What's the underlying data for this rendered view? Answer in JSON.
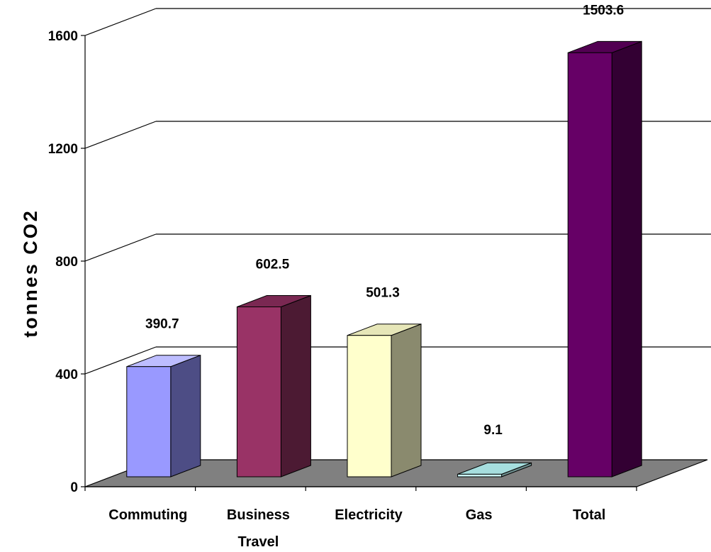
{
  "chart_data": {
    "type": "bar",
    "three_d": true,
    "categories": [
      [
        "Commuting"
      ],
      [
        "Business",
        "Travel"
      ],
      [
        "Electricity"
      ],
      [
        "Gas"
      ],
      [
        "Total"
      ]
    ],
    "values": [
      390.7,
      602.5,
      501.3,
      9.1,
      1503.6
    ],
    "data_labels": [
      "390.7",
      "602.5",
      "501.3",
      "9.1",
      "1503.6"
    ],
    "ylabel": "tonnes CO2",
    "ylim": [
      0,
      1600
    ],
    "yticks": [
      "0",
      "400",
      "800",
      "1200",
      "1600"
    ],
    "grid": true,
    "legend": "none",
    "colors": {
      "bars": [
        {
          "front": "#9999ff",
          "top": "#bdbdff",
          "side": "#4d4d85"
        },
        {
          "front": "#993366",
          "top": "#7a2852",
          "side": "#4c1a33"
        },
        {
          "front": "#ffffcc",
          "top": "#e6e6b8",
          "side": "#8a8a6e"
        },
        {
          "front": "#ccffff",
          "top": "#a6dede",
          "side": "#6f8f8f"
        },
        {
          "front": "#660066",
          "top": "#520052",
          "side": "#330033"
        }
      ],
      "floor": "#808080",
      "grid": "#000000"
    }
  }
}
